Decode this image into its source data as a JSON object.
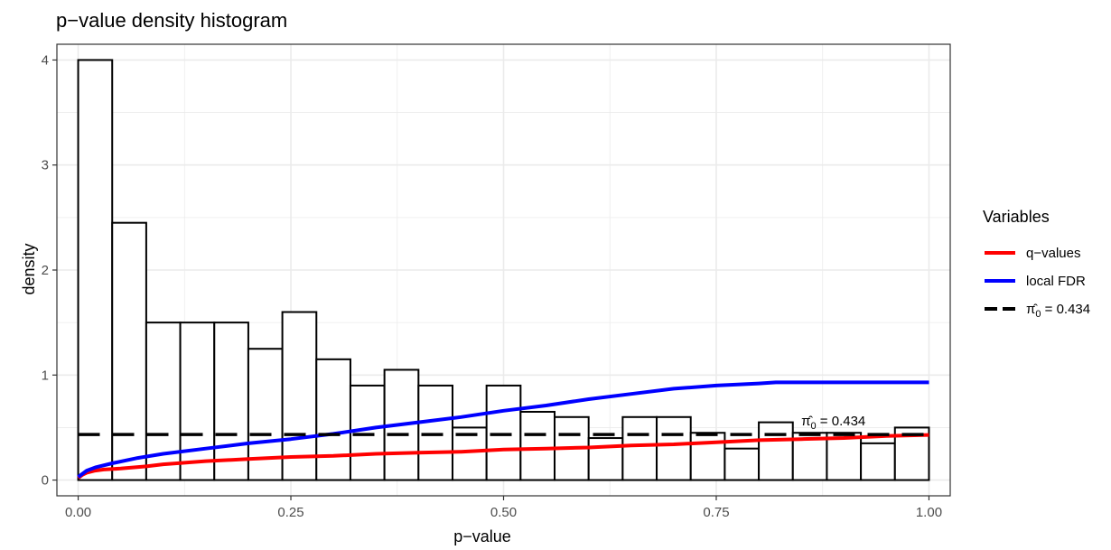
{
  "chart_data": {
    "type": "bar",
    "title": "p−value density histogram",
    "xlabel": "p−value",
    "ylabel": "density",
    "xlim": [
      -0.025,
      1.025
    ],
    "ylim": [
      -0.15,
      4.15
    ],
    "x_ticks": [
      0,
      0.25,
      0.5,
      0.75,
      1
    ],
    "x_tick_labels": [
      "0.00",
      "0.25",
      "0.50",
      "0.75",
      "1.00"
    ],
    "y_ticks": [
      0,
      1,
      2,
      3,
      4
    ],
    "y_tick_labels": [
      "0",
      "1",
      "2",
      "3",
      "4"
    ],
    "grid": true,
    "histogram": {
      "bin_width": 0.04,
      "bin_starts": [
        0,
        0.04,
        0.08,
        0.12,
        0.16,
        0.2,
        0.24,
        0.28,
        0.32,
        0.36,
        0.4,
        0.44,
        0.48,
        0.52,
        0.56,
        0.6,
        0.64,
        0.68,
        0.72,
        0.76,
        0.8,
        0.84,
        0.88,
        0.92,
        0.96
      ],
      "density": [
        4.0,
        2.45,
        1.5,
        1.5,
        1.5,
        1.25,
        1.6,
        1.15,
        0.9,
        1.05,
        0.9,
        0.5,
        0.9,
        0.65,
        0.6,
        0.4,
        0.6,
        0.6,
        0.45,
        0.3,
        0.55,
        0.45,
        0.45,
        0.35,
        0.5
      ]
    },
    "series": [
      {
        "name": "q−values",
        "color": "#ff0000",
        "x": [
          0.0,
          0.005,
          0.01,
          0.02,
          0.03,
          0.05,
          0.08,
          0.1,
          0.15,
          0.2,
          0.25,
          0.3,
          0.35,
          0.4,
          0.45,
          0.5,
          0.55,
          0.6,
          0.65,
          0.7,
          0.75,
          0.8,
          0.85,
          0.9,
          0.95,
          1.0
        ],
        "y": [
          0.02,
          0.05,
          0.07,
          0.09,
          0.1,
          0.11,
          0.13,
          0.15,
          0.18,
          0.2,
          0.22,
          0.23,
          0.25,
          0.26,
          0.27,
          0.29,
          0.3,
          0.31,
          0.33,
          0.34,
          0.36,
          0.38,
          0.39,
          0.4,
          0.42,
          0.43
        ]
      },
      {
        "name": "local FDR",
        "color": "#0000ff",
        "x": [
          0.0,
          0.005,
          0.01,
          0.02,
          0.04,
          0.07,
          0.1,
          0.15,
          0.2,
          0.25,
          0.3,
          0.35,
          0.4,
          0.45,
          0.5,
          0.55,
          0.6,
          0.65,
          0.7,
          0.75,
          0.8,
          0.82,
          0.85,
          0.9,
          0.95,
          1.0
        ],
        "y": [
          0.03,
          0.06,
          0.09,
          0.12,
          0.16,
          0.21,
          0.25,
          0.3,
          0.35,
          0.39,
          0.44,
          0.5,
          0.55,
          0.6,
          0.66,
          0.71,
          0.77,
          0.82,
          0.87,
          0.9,
          0.92,
          0.93,
          0.93,
          0.93,
          0.93,
          0.93
        ]
      },
      {
        "name_math": "π̂₀ = 0.434",
        "color": "#000000",
        "dashed": true,
        "x": [
          0.0,
          1.0
        ],
        "y": [
          0.434,
          0.434
        ]
      }
    ],
    "annotation": {
      "text_parts": [
        "π̂",
        "0",
        " = 0.434"
      ],
      "x": 0.85,
      "y": 0.52
    },
    "legend": {
      "title": "Variables",
      "placement": "right",
      "items": [
        {
          "label": "q−values",
          "color": "#ff0000",
          "dashed": false
        },
        {
          "label": "local FDR",
          "color": "#0000ff",
          "dashed": false
        },
        {
          "label_parts": [
            "π̂",
            "0",
            " = 0.434"
          ],
          "color": "#000000",
          "dashed": true
        }
      ]
    }
  }
}
